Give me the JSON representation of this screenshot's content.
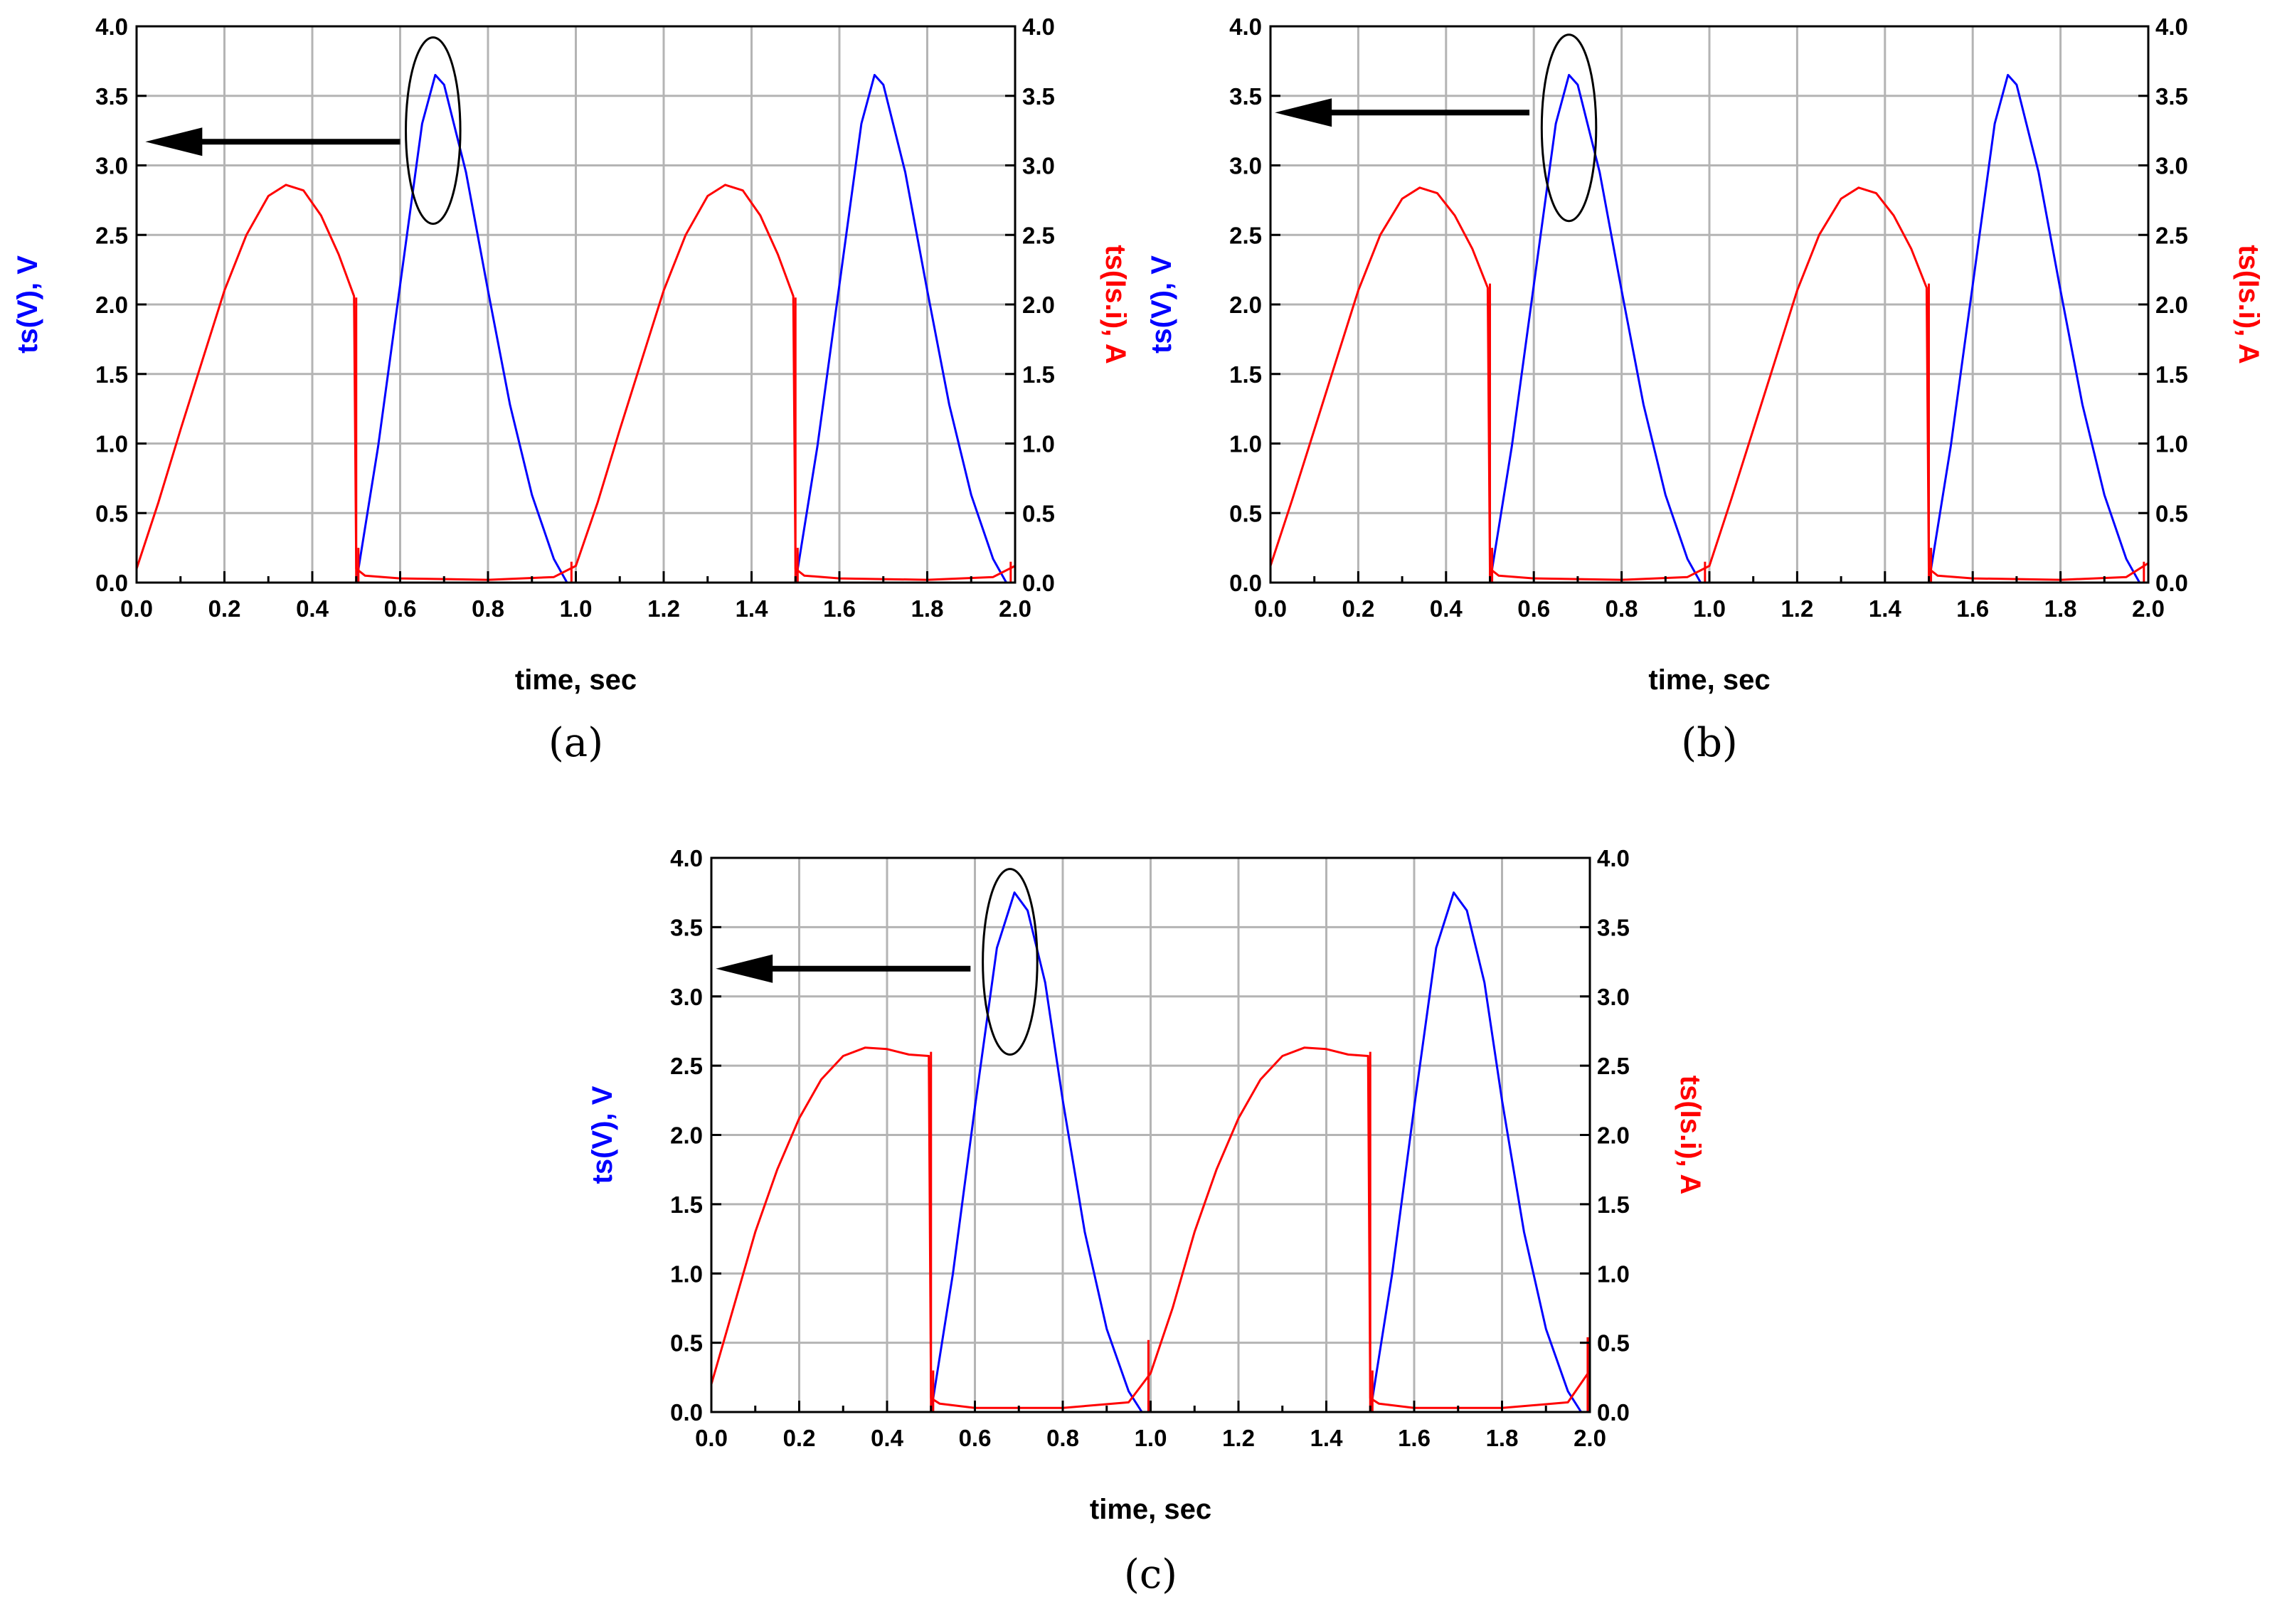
{
  "chart_data": [
    {
      "id": "a",
      "panel_label": "(a)",
      "type": "line",
      "xlabel": "time, sec",
      "ylabel_left": "ts(V), V",
      "ylabel_right": "ts(Is.i), A",
      "xlim": [
        0.0,
        2.0
      ],
      "ylim_left": [
        0.0,
        4.0
      ],
      "ylim_right": [
        0.0,
        4.0
      ],
      "x_ticks": [
        "0.0",
        "0.2",
        "0.4",
        "0.6",
        "0.8",
        "1.0",
        "1.2",
        "1.4",
        "1.6",
        "1.8",
        "2.0"
      ],
      "y_ticks": [
        "0.0",
        "0.5",
        "1.0",
        "1.5",
        "2.0",
        "2.5",
        "3.0",
        "3.5",
        "4.0"
      ],
      "grid": true,
      "colors": {
        "voltage": "#0000ff",
        "current": "#ff0000",
        "annotation": "#000000"
      },
      "series": [
        {
          "name": "ts(V)",
          "axis": "left",
          "points": [
            [
              0.0,
              0.0
            ],
            [
              0.5,
              0.0
            ],
            [
              0.55,
              0.98
            ],
            [
              0.6,
              2.14
            ],
            [
              0.65,
              3.3
            ],
            [
              0.68,
              3.65
            ],
            [
              0.7,
              3.58
            ],
            [
              0.75,
              2.95
            ],
            [
              0.8,
              2.1
            ],
            [
              0.85,
              1.28
            ],
            [
              0.9,
              0.63
            ],
            [
              0.95,
              0.17
            ],
            [
              0.98,
              0.0
            ],
            [
              1.5,
              0.0
            ],
            [
              1.55,
              0.98
            ],
            [
              1.6,
              2.14
            ],
            [
              1.65,
              3.3
            ],
            [
              1.68,
              3.65
            ],
            [
              1.7,
              3.58
            ],
            [
              1.75,
              2.95
            ],
            [
              1.8,
              2.1
            ],
            [
              1.85,
              1.28
            ],
            [
              1.9,
              0.63
            ],
            [
              1.95,
              0.17
            ],
            [
              1.98,
              0.0
            ],
            [
              2.0,
              0.0
            ]
          ]
        },
        {
          "name": "ts(Is.i)",
          "axis": "right",
          "points": [
            [
              0.0,
              0.1
            ],
            [
              0.05,
              0.58
            ],
            [
              0.1,
              1.1
            ],
            [
              0.15,
              1.6
            ],
            [
              0.2,
              2.1
            ],
            [
              0.25,
              2.5
            ],
            [
              0.3,
              2.78
            ],
            [
              0.34,
              2.86
            ],
            [
              0.38,
              2.82
            ],
            [
              0.42,
              2.64
            ],
            [
              0.46,
              2.36
            ],
            [
              0.495,
              2.06
            ],
            [
              0.5,
              0.1
            ],
            [
              0.52,
              0.05
            ],
            [
              0.6,
              0.03
            ],
            [
              0.8,
              0.02
            ],
            [
              0.95,
              0.04
            ],
            [
              1.0,
              0.12
            ],
            [
              1.05,
              0.58
            ],
            [
              1.1,
              1.1
            ],
            [
              1.15,
              1.6
            ],
            [
              1.2,
              2.1
            ],
            [
              1.25,
              2.5
            ],
            [
              1.3,
              2.78
            ],
            [
              1.34,
              2.86
            ],
            [
              1.38,
              2.82
            ],
            [
              1.42,
              2.64
            ],
            [
              1.46,
              2.36
            ],
            [
              1.495,
              2.06
            ],
            [
              1.5,
              0.1
            ],
            [
              1.52,
              0.05
            ],
            [
              1.6,
              0.03
            ],
            [
              1.8,
              0.02
            ],
            [
              1.95,
              0.04
            ],
            [
              2.0,
              0.12
            ]
          ],
          "spikes": [
            [
              0.5,
              2.05
            ],
            [
              1.5,
              2.05
            ],
            [
              0.505,
              0.25
            ],
            [
              1.505,
              0.25
            ],
            [
              0.99,
              0.15
            ],
            [
              1.99,
              0.15
            ]
          ]
        }
      ],
      "annotations": {
        "ellipse": {
          "center": [
            0.675,
            3.25
          ],
          "rx": 0.062,
          "ry": 0.67
        },
        "arrow": {
          "from": [
            0.6,
            3.17
          ],
          "to": [
            0.02,
            3.17
          ],
          "direction": "left"
        }
      }
    },
    {
      "id": "b",
      "panel_label": "(b)",
      "type": "line",
      "xlabel": "time, sec",
      "ylabel_left": "ts(V), V",
      "ylabel_right": "ts(Is.i), A",
      "xlim": [
        0.0,
        2.0
      ],
      "ylim_left": [
        0.0,
        4.0
      ],
      "ylim_right": [
        0.0,
        4.0
      ],
      "x_ticks": [
        "0.0",
        "0.2",
        "0.4",
        "0.6",
        "0.8",
        "1.0",
        "1.2",
        "1.4",
        "1.6",
        "1.8",
        "2.0"
      ],
      "y_ticks": [
        "0.0",
        "0.5",
        "1.0",
        "1.5",
        "2.0",
        "2.5",
        "3.0",
        "3.5",
        "4.0"
      ],
      "grid": true,
      "colors": {
        "voltage": "#0000ff",
        "current": "#ff0000",
        "annotation": "#000000"
      },
      "series": [
        {
          "name": "ts(V)",
          "axis": "left",
          "points": [
            [
              0.0,
              0.0
            ],
            [
              0.5,
              0.0
            ],
            [
              0.55,
              0.98
            ],
            [
              0.6,
              2.14
            ],
            [
              0.65,
              3.3
            ],
            [
              0.68,
              3.65
            ],
            [
              0.7,
              3.58
            ],
            [
              0.75,
              2.95
            ],
            [
              0.8,
              2.1
            ],
            [
              0.85,
              1.28
            ],
            [
              0.9,
              0.63
            ],
            [
              0.95,
              0.17
            ],
            [
              0.98,
              0.0
            ],
            [
              1.5,
              0.0
            ],
            [
              1.55,
              0.98
            ],
            [
              1.6,
              2.14
            ],
            [
              1.65,
              3.3
            ],
            [
              1.68,
              3.65
            ],
            [
              1.7,
              3.58
            ],
            [
              1.75,
              2.95
            ],
            [
              1.8,
              2.1
            ],
            [
              1.85,
              1.28
            ],
            [
              1.9,
              0.63
            ],
            [
              1.95,
              0.17
            ],
            [
              1.98,
              0.0
            ],
            [
              2.0,
              0.0
            ]
          ]
        },
        {
          "name": "ts(Is.i)",
          "axis": "right",
          "points": [
            [
              0.0,
              0.12
            ],
            [
              0.05,
              0.6
            ],
            [
              0.1,
              1.1
            ],
            [
              0.15,
              1.6
            ],
            [
              0.2,
              2.1
            ],
            [
              0.25,
              2.5
            ],
            [
              0.3,
              2.76
            ],
            [
              0.34,
              2.84
            ],
            [
              0.38,
              2.8
            ],
            [
              0.42,
              2.64
            ],
            [
              0.46,
              2.4
            ],
            [
              0.495,
              2.12
            ],
            [
              0.5,
              0.1
            ],
            [
              0.52,
              0.05
            ],
            [
              0.6,
              0.03
            ],
            [
              0.8,
              0.02
            ],
            [
              0.95,
              0.04
            ],
            [
              1.0,
              0.12
            ],
            [
              1.05,
              0.6
            ],
            [
              1.1,
              1.1
            ],
            [
              1.15,
              1.6
            ],
            [
              1.2,
              2.1
            ],
            [
              1.25,
              2.5
            ],
            [
              1.3,
              2.76
            ],
            [
              1.34,
              2.84
            ],
            [
              1.38,
              2.8
            ],
            [
              1.42,
              2.64
            ],
            [
              1.46,
              2.4
            ],
            [
              1.495,
              2.12
            ],
            [
              1.5,
              0.1
            ],
            [
              1.52,
              0.05
            ],
            [
              1.6,
              0.03
            ],
            [
              1.8,
              0.02
            ],
            [
              1.95,
              0.04
            ],
            [
              2.0,
              0.14
            ]
          ],
          "spikes": [
            [
              0.5,
              2.15
            ],
            [
              1.5,
              2.15
            ],
            [
              0.505,
              0.25
            ],
            [
              1.505,
              0.25
            ],
            [
              0.99,
              0.15
            ],
            [
              1.99,
              0.15
            ]
          ]
        }
      ],
      "annotations": {
        "ellipse": {
          "center": [
            0.68,
            3.27
          ],
          "rx": 0.062,
          "ry": 0.67
        },
        "arrow": {
          "from": [
            0.59,
            3.38
          ],
          "to": [
            0.01,
            3.38
          ],
          "direction": "left"
        }
      }
    },
    {
      "id": "c",
      "panel_label": "(c)",
      "type": "line",
      "xlabel": "time, sec",
      "ylabel_left": "ts(V), V",
      "ylabel_right": "ts(Is.i), A",
      "xlim": [
        0.0,
        2.0
      ],
      "ylim_left": [
        0.0,
        4.0
      ],
      "ylim_right": [
        0.0,
        4.0
      ],
      "x_ticks": [
        "0.0",
        "0.2",
        "0.4",
        "0.6",
        "0.8",
        "1.0",
        "1.2",
        "1.4",
        "1.6",
        "1.8",
        "2.0"
      ],
      "y_ticks": [
        "0.0",
        "0.5",
        "1.0",
        "1.5",
        "2.0",
        "2.5",
        "3.0",
        "3.5",
        "4.0"
      ],
      "grid": true,
      "colors": {
        "voltage": "#0000ff",
        "current": "#ff0000",
        "annotation": "#000000"
      },
      "series": [
        {
          "name": "ts(V)",
          "axis": "left",
          "points": [
            [
              0.0,
              0.0
            ],
            [
              0.5,
              0.0
            ],
            [
              0.55,
              1.0
            ],
            [
              0.6,
              2.2
            ],
            [
              0.65,
              3.35
            ],
            [
              0.69,
              3.75
            ],
            [
              0.72,
              3.62
            ],
            [
              0.76,
              3.1
            ],
            [
              0.8,
              2.25
            ],
            [
              0.85,
              1.3
            ],
            [
              0.9,
              0.6
            ],
            [
              0.95,
              0.15
            ],
            [
              0.98,
              0.0
            ],
            [
              1.5,
              0.0
            ],
            [
              1.55,
              1.0
            ],
            [
              1.6,
              2.2
            ],
            [
              1.65,
              3.35
            ],
            [
              1.69,
              3.75
            ],
            [
              1.72,
              3.62
            ],
            [
              1.76,
              3.1
            ],
            [
              1.8,
              2.25
            ],
            [
              1.85,
              1.3
            ],
            [
              1.9,
              0.6
            ],
            [
              1.95,
              0.15
            ],
            [
              1.98,
              0.0
            ],
            [
              2.0,
              0.0
            ]
          ]
        },
        {
          "name": "ts(Is.i)",
          "axis": "right",
          "points": [
            [
              0.0,
              0.2
            ],
            [
              0.05,
              0.75
            ],
            [
              0.1,
              1.3
            ],
            [
              0.15,
              1.75
            ],
            [
              0.2,
              2.12
            ],
            [
              0.25,
              2.4
            ],
            [
              0.3,
              2.57
            ],
            [
              0.35,
              2.63
            ],
            [
              0.4,
              2.62
            ],
            [
              0.45,
              2.58
            ],
            [
              0.495,
              2.57
            ],
            [
              0.5,
              0.1
            ],
            [
              0.52,
              0.06
            ],
            [
              0.6,
              0.03
            ],
            [
              0.8,
              0.03
            ],
            [
              0.95,
              0.07
            ],
            [
              1.0,
              0.28
            ],
            [
              1.05,
              0.75
            ],
            [
              1.1,
              1.3
            ],
            [
              1.15,
              1.75
            ],
            [
              1.2,
              2.12
            ],
            [
              1.25,
              2.4
            ],
            [
              1.3,
              2.57
            ],
            [
              1.35,
              2.63
            ],
            [
              1.4,
              2.62
            ],
            [
              1.45,
              2.58
            ],
            [
              1.495,
              2.57
            ],
            [
              1.5,
              0.1
            ],
            [
              1.52,
              0.06
            ],
            [
              1.6,
              0.03
            ],
            [
              1.8,
              0.03
            ],
            [
              1.95,
              0.07
            ],
            [
              2.0,
              0.3
            ]
          ],
          "spikes": [
            [
              0.5,
              2.6
            ],
            [
              1.5,
              2.6
            ],
            [
              0.505,
              0.3
            ],
            [
              1.505,
              0.3
            ],
            [
              0.995,
              0.52
            ],
            [
              1.995,
              0.54
            ]
          ]
        }
      ],
      "annotations": {
        "ellipse": {
          "center": [
            0.68,
            3.25
          ],
          "rx": 0.062,
          "ry": 0.67
        },
        "arrow": {
          "from": [
            0.59,
            3.2
          ],
          "to": [
            0.01,
            3.2
          ],
          "direction": "left"
        }
      }
    }
  ]
}
